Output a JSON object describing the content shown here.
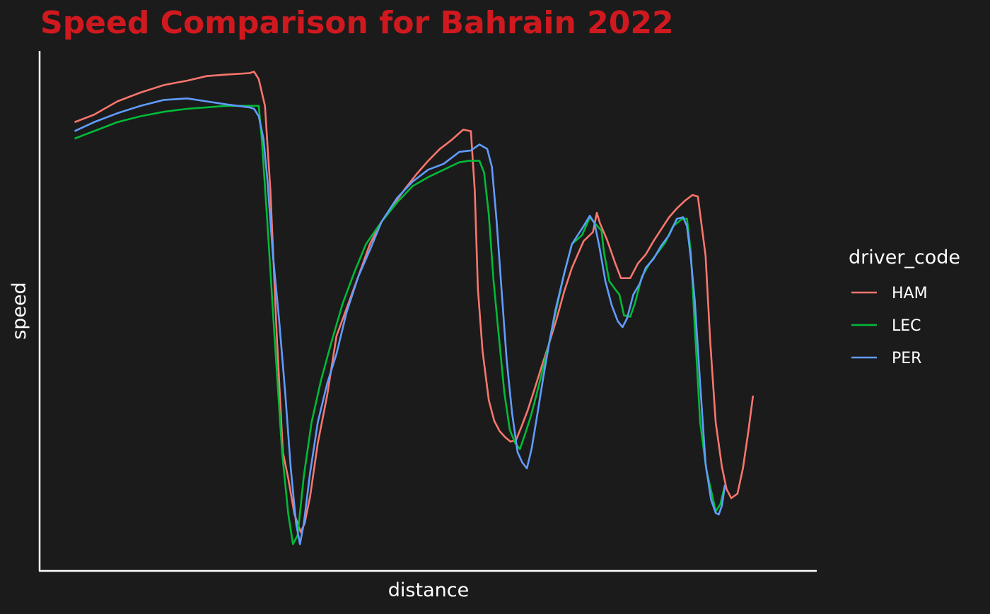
{
  "chart_data": {
    "type": "line",
    "title": "Speed Comparison for Bahrain 2022",
    "xlabel": "distance",
    "ylabel": "speed",
    "legend_title": "driver_code",
    "legend_position": "right",
    "grid": false,
    "xlim": [
      0,
      1000
    ],
    "ylim": [
      0,
      350
    ],
    "colors": {
      "background": "#1b1b1b",
      "title": "#d0191f",
      "text": "#ffffff",
      "axis": "#ffffff"
    },
    "series": [
      {
        "name": "HAM",
        "color": "#f8766d",
        "points": [
          [
            45,
            302
          ],
          [
            70,
            307
          ],
          [
            100,
            316
          ],
          [
            130,
            322
          ],
          [
            160,
            327
          ],
          [
            190,
            330
          ],
          [
            215,
            333
          ],
          [
            240,
            334
          ],
          [
            270,
            335
          ],
          [
            276,
            336
          ],
          [
            282,
            331
          ],
          [
            290,
            313
          ],
          [
            297,
            256
          ],
          [
            305,
            160
          ],
          [
            313,
            80
          ],
          [
            320,
            62
          ],
          [
            328,
            38
          ],
          [
            336,
            26
          ],
          [
            341,
            32
          ],
          [
            348,
            50
          ],
          [
            358,
            86
          ],
          [
            370,
            118
          ],
          [
            382,
            158
          ],
          [
            396,
            178
          ],
          [
            410,
            198
          ],
          [
            425,
            220
          ],
          [
            440,
            235
          ],
          [
            455,
            246
          ],
          [
            470,
            257
          ],
          [
            485,
            267
          ],
          [
            500,
            276
          ],
          [
            515,
            284
          ],
          [
            530,
            290
          ],
          [
            545,
            297
          ],
          [
            555,
            296
          ],
          [
            560,
            256
          ],
          [
            564,
            190
          ],
          [
            570,
            148
          ],
          [
            578,
            115
          ],
          [
            585,
            101
          ],
          [
            592,
            94
          ],
          [
            599,
            90
          ],
          [
            606,
            87
          ],
          [
            613,
            88
          ],
          [
            620,
            97
          ],
          [
            628,
            108
          ],
          [
            636,
            121
          ],
          [
            645,
            136
          ],
          [
            655,
            152
          ],
          [
            665,
            169
          ],
          [
            675,
            188
          ],
          [
            685,
            204
          ],
          [
            700,
            222
          ],
          [
            712,
            228
          ],
          [
            717,
            241
          ],
          [
            721,
            234
          ],
          [
            730,
            223
          ],
          [
            740,
            208
          ],
          [
            748,
            197
          ],
          [
            760,
            197
          ],
          [
            770,
            207
          ],
          [
            780,
            213
          ],
          [
            790,
            222
          ],
          [
            800,
            230
          ],
          [
            810,
            238
          ],
          [
            820,
            244
          ],
          [
            830,
            249
          ],
          [
            840,
            253
          ],
          [
            847,
            252
          ],
          [
            857,
            212
          ],
          [
            863,
            154
          ],
          [
            870,
            100
          ],
          [
            878,
            70
          ],
          [
            884,
            55
          ],
          [
            890,
            49
          ],
          [
            898,
            52
          ],
          [
            905,
            69
          ],
          [
            912,
            94
          ],
          [
            918,
            118
          ]
        ]
      },
      {
        "name": "LEC",
        "color": "#00ba38",
        "points": [
          [
            45,
            291
          ],
          [
            70,
            296
          ],
          [
            100,
            302
          ],
          [
            130,
            306
          ],
          [
            160,
            309
          ],
          [
            190,
            311
          ],
          [
            215,
            312
          ],
          [
            240,
            313
          ],
          [
            270,
            313
          ],
          [
            276,
            313
          ],
          [
            282,
            313
          ],
          [
            286,
            290
          ],
          [
            293,
            235
          ],
          [
            302,
            160
          ],
          [
            312,
            80
          ],
          [
            320,
            38
          ],
          [
            326,
            18
          ],
          [
            332,
            24
          ],
          [
            340,
            64
          ],
          [
            350,
            100
          ],
          [
            362,
            128
          ],
          [
            375,
            153
          ],
          [
            390,
            180
          ],
          [
            405,
            201
          ],
          [
            420,
            220
          ],
          [
            440,
            235
          ],
          [
            460,
            248
          ],
          [
            480,
            259
          ],
          [
            500,
            265
          ],
          [
            520,
            270
          ],
          [
            540,
            275
          ],
          [
            552,
            276
          ],
          [
            566,
            276
          ],
          [
            572,
            268
          ],
          [
            578,
            240
          ],
          [
            584,
            196
          ],
          [
            590,
            163
          ],
          [
            598,
            120
          ],
          [
            605,
            95
          ],
          [
            612,
            86
          ],
          [
            618,
            82
          ],
          [
            624,
            91
          ],
          [
            632,
            104
          ],
          [
            640,
            120
          ],
          [
            648,
            137
          ],
          [
            656,
            154
          ],
          [
            664,
            174
          ],
          [
            675,
            200
          ],
          [
            685,
            220
          ],
          [
            698,
            226
          ],
          [
            708,
            238
          ],
          [
            716,
            233
          ],
          [
            723,
            229
          ],
          [
            726,
            215
          ],
          [
            733,
            195
          ],
          [
            740,
            190
          ],
          [
            746,
            186
          ],
          [
            752,
            172
          ],
          [
            760,
            171
          ],
          [
            766,
            180
          ],
          [
            775,
            198
          ],
          [
            785,
            207
          ],
          [
            795,
            214
          ],
          [
            805,
            221
          ],
          [
            815,
            232
          ],
          [
            827,
            237
          ],
          [
            833,
            237
          ],
          [
            838,
            214
          ],
          [
            843,
            164
          ],
          [
            850,
            100
          ],
          [
            858,
            68
          ],
          [
            865,
            52
          ],
          [
            870,
            40
          ],
          [
            876,
            45
          ],
          [
            882,
            58
          ]
        ]
      },
      {
        "name": "PER",
        "color": "#619cff",
        "points": [
          [
            45,
            296
          ],
          [
            70,
            302
          ],
          [
            100,
            308
          ],
          [
            130,
            313
          ],
          [
            160,
            317
          ],
          [
            190,
            318
          ],
          [
            215,
            316
          ],
          [
            240,
            314
          ],
          [
            270,
            312
          ],
          [
            276,
            311
          ],
          [
            282,
            306
          ],
          [
            288,
            291
          ],
          [
            293,
            264
          ],
          [
            300,
            214
          ],
          [
            308,
            170
          ],
          [
            316,
            120
          ],
          [
            323,
            70
          ],
          [
            330,
            32
          ],
          [
            335,
            18
          ],
          [
            340,
            32
          ],
          [
            348,
            66
          ],
          [
            358,
            100
          ],
          [
            370,
            126
          ],
          [
            382,
            146
          ],
          [
            395,
            174
          ],
          [
            410,
            198
          ],
          [
            425,
            216
          ],
          [
            440,
            235
          ],
          [
            460,
            251
          ],
          [
            480,
            262
          ],
          [
            500,
            270
          ],
          [
            520,
            274
          ],
          [
            540,
            282
          ],
          [
            555,
            283
          ],
          [
            566,
            287
          ],
          [
            576,
            284
          ],
          [
            582,
            272
          ],
          [
            588,
            236
          ],
          [
            595,
            185
          ],
          [
            601,
            142
          ],
          [
            608,
            106
          ],
          [
            615,
            80
          ],
          [
            621,
            73
          ],
          [
            627,
            69
          ],
          [
            633,
            82
          ],
          [
            640,
            104
          ],
          [
            648,
            130
          ],
          [
            656,
            154
          ],
          [
            664,
            176
          ],
          [
            675,
            200
          ],
          [
            685,
            220
          ],
          [
            700,
            232
          ],
          [
            708,
            239
          ],
          [
            714,
            234
          ],
          [
            720,
            219
          ],
          [
            728,
            195
          ],
          [
            736,
            179
          ],
          [
            744,
            168
          ],
          [
            750,
            164
          ],
          [
            756,
            170
          ],
          [
            764,
            186
          ],
          [
            772,
            193
          ],
          [
            780,
            204
          ],
          [
            790,
            210
          ],
          [
            800,
            219
          ],
          [
            810,
            226
          ],
          [
            820,
            237
          ],
          [
            828,
            238
          ],
          [
            833,
            232
          ],
          [
            838,
            210
          ],
          [
            843,
            182
          ],
          [
            850,
            126
          ],
          [
            857,
            72
          ],
          [
            864,
            48
          ],
          [
            870,
            39
          ],
          [
            874,
            38
          ],
          [
            878,
            44
          ],
          [
            882,
            58
          ]
        ]
      }
    ]
  }
}
